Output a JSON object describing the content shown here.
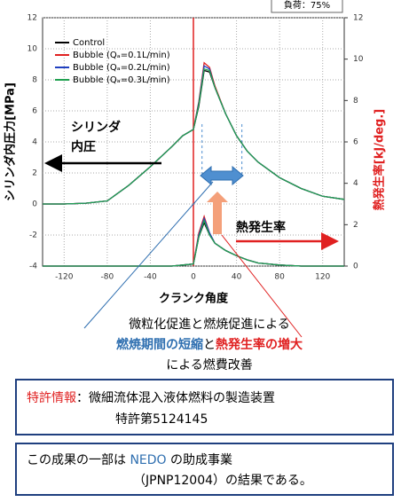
{
  "chart_data": {
    "type": "line",
    "load_label": "負荷：75%",
    "ylabel": "シリンダ内圧力[MPa]",
    "y2label": "熱発生率[kJ/deg.]",
    "xlabel": "クランク角度",
    "x": [
      -140,
      -120,
      -100,
      -80,
      -60,
      -40,
      -20,
      -10,
      0,
      5,
      10,
      15,
      20,
      30,
      40,
      50,
      60,
      80,
      100,
      120,
      140
    ],
    "xlim": [
      -140,
      140
    ],
    "xticks": [
      -120,
      -80,
      -40,
      0,
      40,
      80,
      120
    ],
    "ylim": [
      -4,
      12
    ],
    "yticks": [
      -4,
      -2,
      0,
      2,
      4,
      6,
      8,
      10,
      12
    ],
    "y2lim": [
      0,
      12
    ],
    "y2ticks": [
      0,
      2,
      4,
      6,
      8,
      10,
      12
    ],
    "grid": true,
    "legend": "upper left",
    "series": [
      {
        "name": "Control",
        "color": "#000000",
        "values": [
          0,
          0,
          0.05,
          0.2,
          1.2,
          2.4,
          3.7,
          4.4,
          4.8,
          6.3,
          8.6,
          8.5,
          7.5,
          5.8,
          4.4,
          3.4,
          2.7,
          1.7,
          1.0,
          0.5,
          0.3
        ],
        "heat_values": [
          0,
          0,
          0,
          0,
          0,
          0,
          0,
          0.05,
          0.1,
          1.4,
          2.1,
          1.5,
          1.1,
          0.75,
          0.5,
          0.3,
          0.15,
          0.05,
          0,
          0,
          0
        ]
      },
      {
        "name": "Bubble (Qₐ=0.1L/min)",
        "color": "#e02020",
        "values": [
          0,
          0,
          0.05,
          0.2,
          1.2,
          2.4,
          3.7,
          4.4,
          4.8,
          6.6,
          9.1,
          8.8,
          7.6,
          5.8,
          4.4,
          3.4,
          2.7,
          1.7,
          1.0,
          0.5,
          0.3
        ],
        "heat_values": [
          0,
          0,
          0,
          0,
          0,
          0,
          0,
          0.05,
          0.1,
          1.6,
          2.4,
          1.6,
          1.1,
          0.75,
          0.5,
          0.3,
          0.15,
          0.05,
          0,
          0,
          0
        ]
      },
      {
        "name": "Bubble (Qₐ=0.2L/min)",
        "color": "#2040c0",
        "values": [
          0,
          0,
          0.05,
          0.2,
          1.2,
          2.4,
          3.7,
          4.4,
          4.8,
          6.5,
          8.9,
          8.7,
          7.5,
          5.8,
          4.4,
          3.4,
          2.7,
          1.7,
          1.0,
          0.5,
          0.3
        ],
        "heat_values": [
          0,
          0,
          0,
          0,
          0,
          0,
          0,
          0.05,
          0.1,
          1.5,
          2.3,
          1.6,
          1.1,
          0.75,
          0.5,
          0.3,
          0.15,
          0.05,
          0,
          0,
          0
        ]
      },
      {
        "name": "Bubble (Qₐ=0.3L/min)",
        "color": "#20a050",
        "values": [
          0,
          0,
          0.05,
          0.2,
          1.2,
          2.4,
          3.7,
          4.4,
          4.8,
          6.4,
          8.7,
          8.6,
          7.5,
          5.8,
          4.4,
          3.4,
          2.7,
          1.7,
          1.0,
          0.5,
          0.3
        ],
        "heat_values": [
          0,
          0,
          0,
          0,
          0,
          0,
          0,
          0.05,
          0.1,
          1.4,
          2.2,
          1.5,
          1.1,
          0.75,
          0.5,
          0.3,
          0.15,
          0.05,
          0,
          0,
          0
        ]
      }
    ],
    "annotations": {
      "pressure": [
        "シリンダ",
        "内圧"
      ],
      "heat": "熱発生率"
    }
  },
  "summary": {
    "line1": "微粒化促進と燃焼促進による",
    "short": "燃焼期間の短縮",
    "and": "と",
    "increase": "熱発生率の増大",
    "line3": "による燃費改善"
  },
  "patent": {
    "label": "特許情報",
    "text": "：微細流体混入液体燃料の製造装置",
    "number": "特許第5124145"
  },
  "nedo": {
    "pre": "この成果の一部は ",
    "org": "NEDO",
    "post": " の助成事業",
    "line2": "（JPNP12004）の結果である。"
  }
}
